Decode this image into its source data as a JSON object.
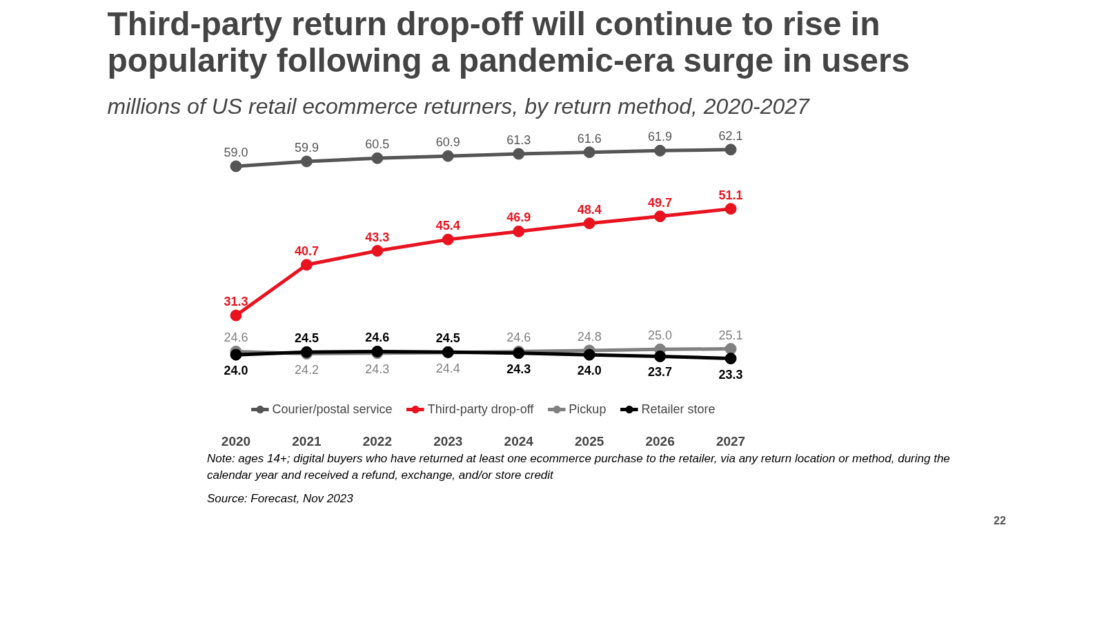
{
  "chart_data": {
    "type": "line",
    "title": "Third-party return drop-off will continue to rise in\npopularity following a pandemic-era surge in users",
    "subtitle": "millions of US retail ecommerce returners, by return method, 2020-2027",
    "categories": [
      "2020",
      "2021",
      "2022",
      "2023",
      "2024",
      "2025",
      "2026",
      "2027"
    ],
    "series": [
      {
        "name": "Courier/postal service",
        "color": "#555555",
        "values": [
          59.0,
          59.9,
          60.5,
          60.9,
          61.3,
          61.6,
          61.9,
          62.1
        ],
        "value_labels": [
          "59.0",
          "59.9",
          "60.5",
          "60.9",
          "61.3",
          "61.6",
          "61.9",
          "62.1"
        ]
      },
      {
        "name": "Third-party drop-off",
        "color": "#e8131f",
        "values": [
          31.3,
          40.7,
          43.3,
          45.4,
          46.9,
          48.4,
          49.7,
          51.1
        ],
        "value_labels": [
          "31.3",
          "40.7",
          "43.3",
          "45.4",
          "46.9",
          "48.4",
          "49.7",
          "51.1"
        ]
      },
      {
        "name": "Pickup",
        "color": "#808080",
        "values": [
          24.6,
          24.2,
          24.3,
          24.4,
          24.6,
          24.8,
          25.0,
          25.1
        ],
        "value_labels": [
          "24.6",
          "24.2",
          "24.3",
          "24.4",
          "24.6",
          "24.8",
          "25.0",
          "25.1"
        ]
      },
      {
        "name": "Retailer store",
        "color": "#000000",
        "values": [
          24.0,
          24.5,
          24.6,
          24.5,
          24.3,
          24.0,
          23.7,
          23.3
        ],
        "value_labels": [
          "24.0",
          "24.5",
          "24.6",
          "24.5",
          "24.3",
          "24.0",
          "23.7",
          "23.3"
        ]
      }
    ],
    "marker": "circle",
    "line_style": "solid",
    "legend": "bottom",
    "grid": false,
    "tick_labels": "x",
    "annotations": [
      "Note: ages 14+; digital buyers who have returned at least one ecommerce purchase to the retailer, via any return location or method, during the calendar year and received a refund, exchange, and/or store credit",
      "Source: Forecast, Nov 2023",
      "22"
    ]
  }
}
